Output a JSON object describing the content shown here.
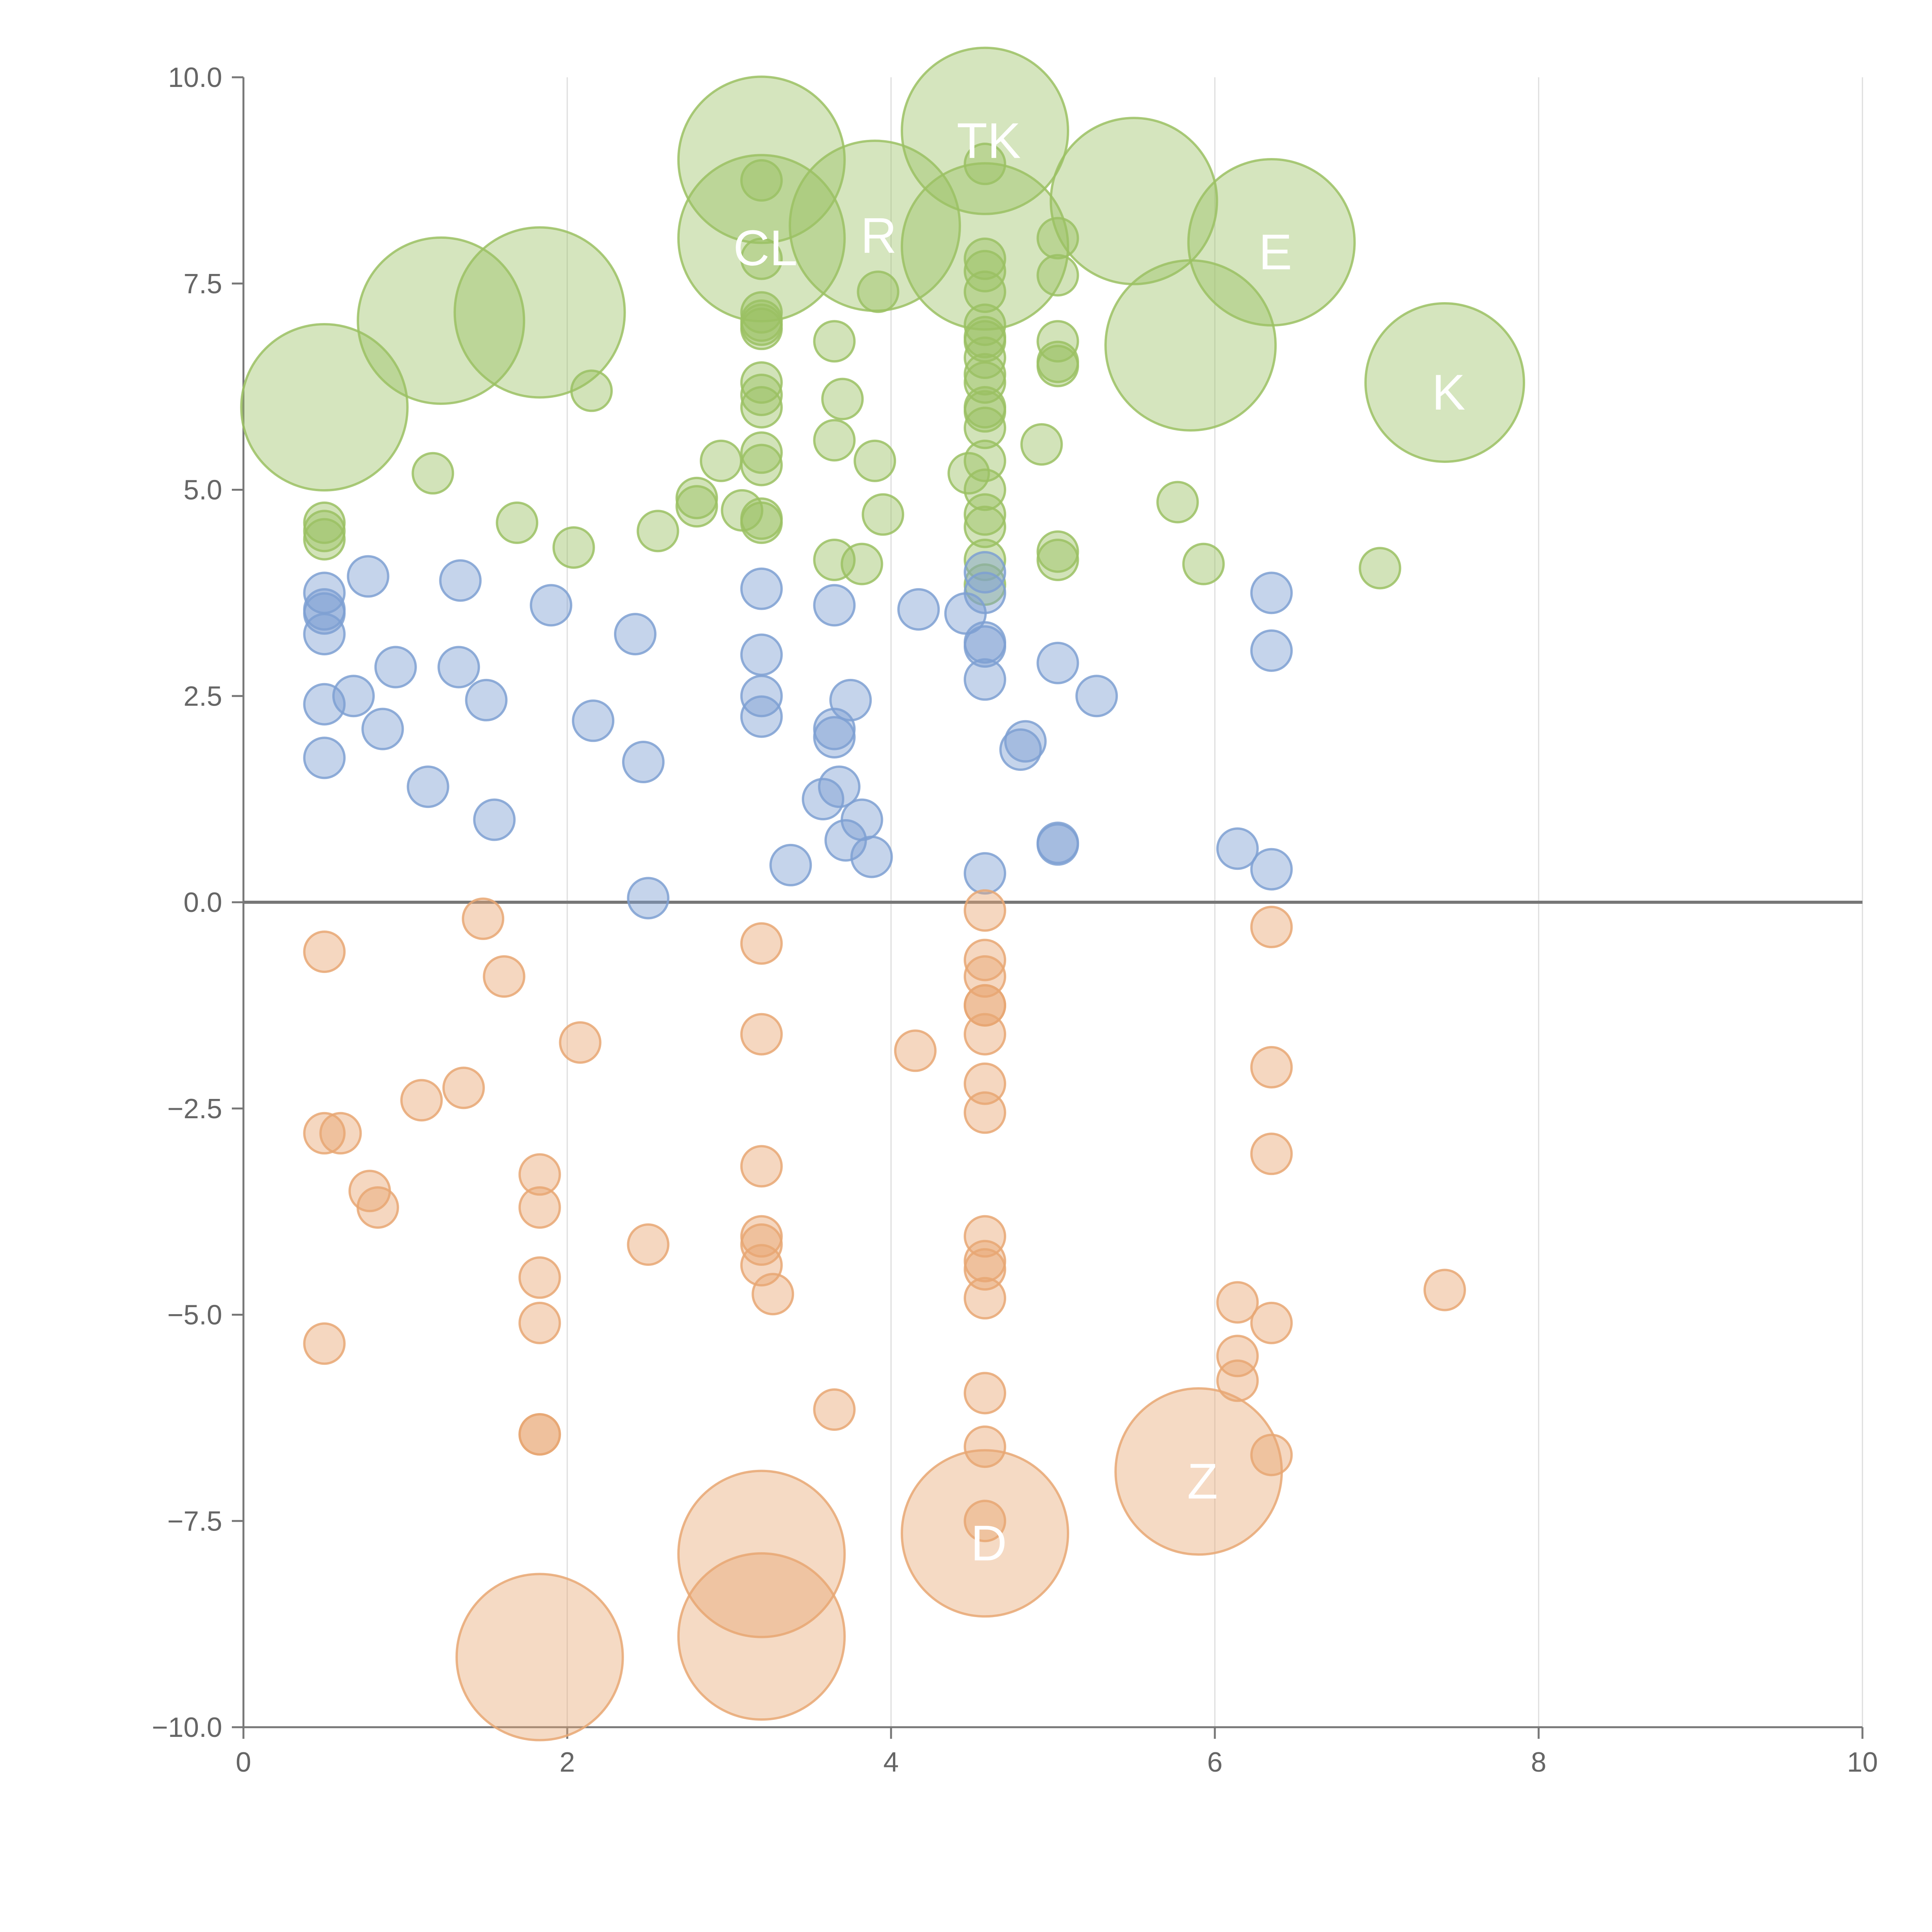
{
  "chart_data": {
    "type": "scatter",
    "title": "",
    "xlabel": "",
    "ylabel": "",
    "xlim": [
      0,
      10
    ],
    "ylim": [
      -10,
      10
    ],
    "x_ticks": [
      0,
      2,
      4,
      6,
      8,
      10
    ],
    "x_tick_labels": [
      "0",
      "2",
      "4",
      "6",
      "8",
      "10"
    ],
    "y_ticks": [
      -10,
      -7.5,
      -5,
      -2.5,
      0,
      2.5,
      5,
      7.5,
      10
    ],
    "y_tick_labels": [
      "−10.0",
      "−7.5",
      "−5.0",
      "−2.5",
      "0.0",
      "2.5",
      "5.0",
      "7.5",
      "10.0"
    ],
    "grid": "vertical",
    "zero_line": true,
    "legend": "none",
    "series": [
      {
        "name": "green",
        "color": "#9bc163",
        "points": [
          [
            0.5,
            4.6
          ],
          [
            0.5,
            4.4
          ],
          [
            0.5,
            4.5
          ],
          [
            1.17,
            5.2
          ],
          [
            1.69,
            4.6
          ],
          [
            2.04,
            4.3
          ],
          [
            2.15,
            6.2
          ],
          [
            2.56,
            4.5
          ],
          [
            2.8,
            4.9
          ],
          [
            2.8,
            4.8
          ],
          [
            2.95,
            5.35
          ],
          [
            3.08,
            4.75
          ],
          [
            3.2,
            4.6
          ],
          [
            3.2,
            4.65
          ],
          [
            3.2,
            5.3
          ],
          [
            3.2,
            5.45
          ],
          [
            3.2,
            6.0
          ],
          [
            3.2,
            6.15
          ],
          [
            3.2,
            6.3
          ],
          [
            3.2,
            6.95
          ],
          [
            3.2,
            7.0
          ],
          [
            3.2,
            7.05
          ],
          [
            3.2,
            7.15
          ],
          [
            3.2,
            7.8
          ],
          [
            3.2,
            8.75
          ],
          [
            3.65,
            6.8
          ],
          [
            3.65,
            5.6
          ],
          [
            3.65,
            4.15
          ],
          [
            3.7,
            6.1
          ],
          [
            3.82,
            4.1
          ],
          [
            3.9,
            5.35
          ],
          [
            3.92,
            7.4
          ],
          [
            3.95,
            4.7
          ],
          [
            4.48,
            5.2
          ],
          [
            4.58,
            8.95
          ],
          [
            4.58,
            7.8
          ],
          [
            4.58,
            7.65
          ],
          [
            4.58,
            7.4
          ],
          [
            4.58,
            7.0
          ],
          [
            4.58,
            6.85
          ],
          [
            4.58,
            6.8
          ],
          [
            4.58,
            6.6
          ],
          [
            4.58,
            6.4
          ],
          [
            4.58,
            6.3
          ],
          [
            4.58,
            6.0
          ],
          [
            4.58,
            5.95
          ],
          [
            4.58,
            5.75
          ],
          [
            4.58,
            5.35
          ],
          [
            4.58,
            5.0
          ],
          [
            4.58,
            4.7
          ],
          [
            4.58,
            4.55
          ],
          [
            4.58,
            4.15
          ],
          [
            4.58,
            3.85
          ],
          [
            4.93,
            5.55
          ],
          [
            5.03,
            8.05
          ],
          [
            5.03,
            7.6
          ],
          [
            5.03,
            6.8
          ],
          [
            5.03,
            6.55
          ],
          [
            5.03,
            6.5
          ],
          [
            5.03,
            4.25
          ],
          [
            5.03,
            4.15
          ],
          [
            5.77,
            4.85
          ],
          [
            5.93,
            4.1
          ],
          [
            7.02,
            4.05
          ]
        ],
        "bubbles": [
          [
            0.5,
            6.0,
            "",
            215
          ],
          [
            1.22,
            7.05,
            "",
            215
          ],
          [
            1.83,
            7.15,
            "",
            220
          ],
          [
            3.2,
            9.0,
            "",
            215
          ],
          [
            3.2,
            8.05,
            "CL",
            215
          ],
          [
            3.9,
            8.2,
            "R",
            220
          ],
          [
            4.58,
            9.35,
            "TK",
            215
          ],
          [
            4.58,
            7.95,
            "",
            215
          ],
          [
            5.5,
            8.5,
            "",
            215
          ],
          [
            5.85,
            6.75,
            "",
            220
          ],
          [
            6.35,
            8.0,
            "E",
            215
          ],
          [
            7.42,
            6.3,
            "K",
            205
          ]
        ]
      },
      {
        "name": "blue",
        "color": "#7ea0d2",
        "points": [
          [
            0.5,
            3.75
          ],
          [
            0.5,
            3.55
          ],
          [
            0.5,
            3.5
          ],
          [
            0.5,
            3.25
          ],
          [
            0.5,
            2.4
          ],
          [
            0.5,
            1.75
          ],
          [
            0.68,
            2.5
          ],
          [
            0.77,
            3.95
          ],
          [
            0.86,
            2.1
          ],
          [
            0.94,
            2.85
          ],
          [
            1.14,
            1.4
          ],
          [
            1.33,
            2.85
          ],
          [
            1.34,
            3.9
          ],
          [
            1.5,
            2.45
          ],
          [
            1.55,
            1.0
          ],
          [
            1.9,
            3.6
          ],
          [
            2.16,
            2.2
          ],
          [
            2.42,
            3.25
          ],
          [
            2.47,
            1.7
          ],
          [
            2.5,
            0.05
          ],
          [
            3.2,
            3.8
          ],
          [
            3.2,
            3.0
          ],
          [
            3.2,
            2.5
          ],
          [
            3.2,
            2.25
          ],
          [
            3.38,
            0.45
          ],
          [
            3.58,
            1.25
          ],
          [
            3.65,
            3.6
          ],
          [
            3.65,
            2.1
          ],
          [
            3.65,
            2.0
          ],
          [
            3.68,
            1.4
          ],
          [
            3.72,
            0.75
          ],
          [
            3.75,
            2.45
          ],
          [
            3.82,
            1.0
          ],
          [
            3.88,
            0.55
          ],
          [
            4.17,
            3.55
          ],
          [
            4.46,
            3.5
          ],
          [
            4.58,
            4.0
          ],
          [
            4.58,
            3.75
          ],
          [
            4.58,
            3.15
          ],
          [
            4.58,
            3.1
          ],
          [
            4.58,
            2.7
          ],
          [
            4.58,
            0.35
          ],
          [
            4.8,
            1.85
          ],
          [
            4.83,
            1.95
          ],
          [
            5.03,
            2.9
          ],
          [
            5.03,
            0.7
          ],
          [
            5.03,
            0.72
          ],
          [
            5.27,
            2.5
          ],
          [
            6.14,
            0.65
          ],
          [
            6.35,
            3.75
          ],
          [
            6.35,
            3.05
          ],
          [
            6.35,
            0.4
          ]
        ],
        "bubbles": []
      },
      {
        "name": "orange",
        "color": "#e8a773",
        "points": [
          [
            0.5,
            -0.6
          ],
          [
            0.5,
            -2.8
          ],
          [
            0.5,
            -5.35
          ],
          [
            0.6,
            -2.8
          ],
          [
            0.78,
            -3.5
          ],
          [
            0.83,
            -3.7
          ],
          [
            1.1,
            -2.4
          ],
          [
            1.36,
            -2.25
          ],
          [
            1.48,
            -0.2
          ],
          [
            1.61,
            -0.9
          ],
          [
            1.83,
            -3.3
          ],
          [
            1.83,
            -3.7
          ],
          [
            1.83,
            -4.55
          ],
          [
            1.83,
            -5.1
          ],
          [
            1.83,
            -6.45
          ],
          [
            1.83,
            -6.45
          ],
          [
            2.08,
            -1.7
          ],
          [
            2.5,
            -4.15
          ],
          [
            3.2,
            -0.5
          ],
          [
            3.2,
            -1.6
          ],
          [
            3.2,
            -3.2
          ],
          [
            3.2,
            -4.05
          ],
          [
            3.2,
            -4.15
          ],
          [
            3.2,
            -4.4
          ],
          [
            3.27,
            -4.75
          ],
          [
            3.65,
            -6.15
          ],
          [
            4.15,
            -1.8
          ],
          [
            4.58,
            -0.1
          ],
          [
            4.58,
            -0.7
          ],
          [
            4.58,
            -0.9
          ],
          [
            4.58,
            -1.25
          ],
          [
            4.58,
            -1.25
          ],
          [
            4.58,
            -1.6
          ],
          [
            4.58,
            -2.2
          ],
          [
            4.58,
            -2.55
          ],
          [
            4.58,
            -4.05
          ],
          [
            4.58,
            -4.35
          ],
          [
            4.58,
            -4.45
          ],
          [
            4.58,
            -4.8
          ],
          [
            4.58,
            -5.95
          ],
          [
            4.58,
            -6.6
          ],
          [
            4.58,
            -7.5
          ],
          [
            6.14,
            -4.85
          ],
          [
            6.14,
            -5.5
          ],
          [
            6.14,
            -5.8
          ],
          [
            6.35,
            -0.3
          ],
          [
            6.35,
            -2.0
          ],
          [
            6.35,
            -3.05
          ],
          [
            6.35,
            -5.1
          ],
          [
            6.35,
            -6.7
          ],
          [
            7.42,
            -4.7
          ]
        ],
        "bubbles": [
          [
            1.83,
            -9.15,
            "",
            215
          ],
          [
            3.2,
            -7.9,
            "",
            215
          ],
          [
            3.2,
            -8.9,
            "",
            215
          ],
          [
            4.58,
            -7.65,
            "D",
            215
          ],
          [
            5.9,
            -6.9,
            "Z",
            215
          ]
        ]
      }
    ]
  }
}
